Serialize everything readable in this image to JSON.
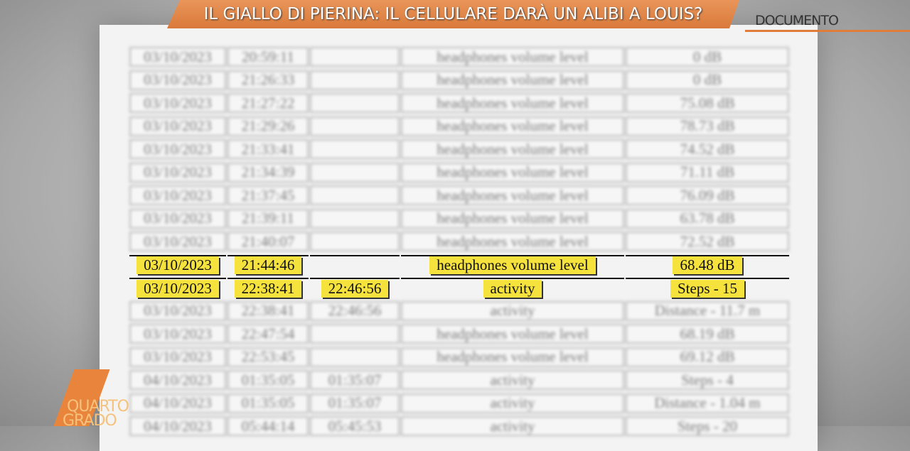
{
  "banner": {
    "title": "IL GIALLO DI PIERINA: IL CELLULARE DARÀ UN ALIBI A LOUIS?",
    "section": "DOCUMENTO"
  },
  "logo": {
    "line1": "QUARTO",
    "line2": "GRADO"
  },
  "table": {
    "rows": [
      [
        "03/10/2023",
        "20:59:11",
        null,
        "headphones volume level",
        "0 dB"
      ],
      [
        "03/10/2023",
        "21:26:33",
        null,
        "headphones volume level",
        "0 dB"
      ],
      [
        "03/10/2023",
        "21:27:22",
        null,
        "headphones volume level",
        "75.08 dB"
      ],
      [
        "03/10/2023",
        "21:29:26",
        null,
        "headphones volume level",
        "78.73 dB"
      ],
      [
        "03/10/2023",
        "21:33:41",
        null,
        "headphones volume level",
        "74.52 dB"
      ],
      [
        "03/10/2023",
        "21:34:39",
        null,
        "headphones volume level",
        "71.11 dB"
      ],
      [
        "03/10/2023",
        "21:37:45",
        null,
        "headphones volume level",
        "76.09 dB"
      ],
      [
        "03/10/2023",
        "21:39:11",
        null,
        "headphones volume level",
        "63.78 dB"
      ],
      [
        "03/10/2023",
        "21:40:07",
        null,
        "headphones volume level",
        "72.52 dB"
      ],
      [
        "03/10/2023",
        "21:44:46",
        null,
        "headphones volume level",
        "68.48 dB"
      ],
      [
        "03/10/2023",
        "22:38:41",
        "22:46:56",
        "activity",
        "Steps - 15"
      ],
      [
        "03/10/2023",
        "22:38:41",
        "22:46:56",
        "activity",
        "Distance - 11.7 m"
      ],
      [
        "03/10/2023",
        "22:47:54",
        null,
        "headphones volume level",
        "68.19 dB"
      ],
      [
        "03/10/2023",
        "22:53:45",
        null,
        "headphones volume level",
        "69.12 dB"
      ],
      [
        "04/10/2023",
        "01:35:05",
        "01:35:07",
        "activity",
        "Steps - 4"
      ],
      [
        "04/10/2023",
        "01:35:05",
        "01:35:07",
        "activity",
        "Distance - 1.04 m"
      ],
      [
        "04/10/2023",
        "05:44:14",
        "05:45:53",
        "activity",
        "Steps - 20"
      ]
    ]
  }
}
